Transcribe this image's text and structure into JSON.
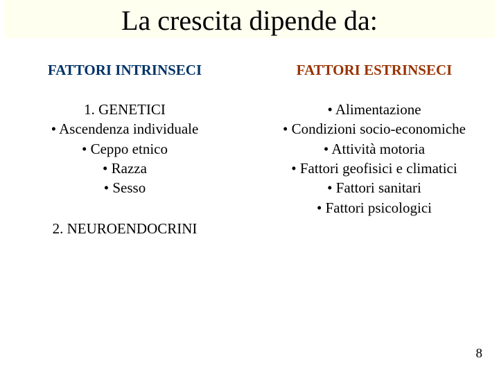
{
  "title": "La crescita dipende da:",
  "left": {
    "header": "FATTORI INTRINSECI",
    "items": [
      "1.      GENETICI",
      "•      Ascendenza individuale",
      "•        Ceppo etnico",
      "•         Razza",
      "•         Sesso"
    ],
    "second": "2. NEUROENDOCRINI"
  },
  "right": {
    "header": "FATTORI ESTRINSECI",
    "items": [
      "•    Alimentazione",
      "•    Condizioni socio-economiche",
      "•    Attività motoria",
      "•    Fattori geofisici e climatici",
      "•    Fattori sanitari",
      "•    Fattori psicologici"
    ]
  },
  "page_number": "8",
  "colors": {
    "title_band_bg": "#fffff0",
    "left_header": "#003366",
    "right_header": "#993300",
    "text": "#000000",
    "background": "#ffffff"
  }
}
